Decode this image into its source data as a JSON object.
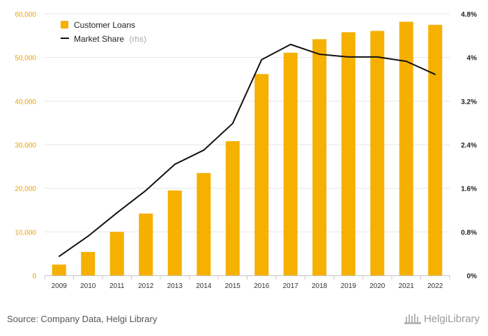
{
  "chart_data": {
    "type": "bar",
    "categories": [
      "2009",
      "2010",
      "2011",
      "2012",
      "2013",
      "2014",
      "2015",
      "2016",
      "2017",
      "2018",
      "2019",
      "2020",
      "2021",
      "2022"
    ],
    "series": [
      {
        "name": "Customer Loans",
        "type": "bar",
        "axis": "left",
        "values": [
          2500,
          5400,
          10000,
          14200,
          19500,
          23500,
          30800,
          46200,
          51100,
          54200,
          55800,
          56100,
          58200,
          57500
        ]
      },
      {
        "name": "Market Share",
        "name_suffix": "(rhs)",
        "type": "line",
        "axis": "right",
        "values": [
          0.35,
          0.72,
          1.15,
          1.56,
          2.04,
          2.3,
          2.79,
          3.96,
          4.24,
          4.06,
          4.01,
          4.01,
          3.93,
          3.69
        ]
      }
    ],
    "y_left": {
      "ylim": [
        0,
        60000
      ],
      "ticks": [
        "0",
        "10,000",
        "20,000",
        "30,000",
        "40,000",
        "50,000",
        "60,000"
      ]
    },
    "y_right": {
      "ylim": [
        0,
        4.8
      ],
      "ticks": [
        "0%",
        "0.8%",
        "1.6%",
        "2.4%",
        "3.2%",
        "4%",
        "4.8%"
      ]
    },
    "grid": true,
    "legend_position": "top-left",
    "colors": {
      "bar": "#f5b000",
      "line": "#111111",
      "grid": "#e6e6e6"
    }
  },
  "footer": {
    "source": "Source: Company Data, Helgi Library",
    "brand": "HelgiLibrary"
  }
}
